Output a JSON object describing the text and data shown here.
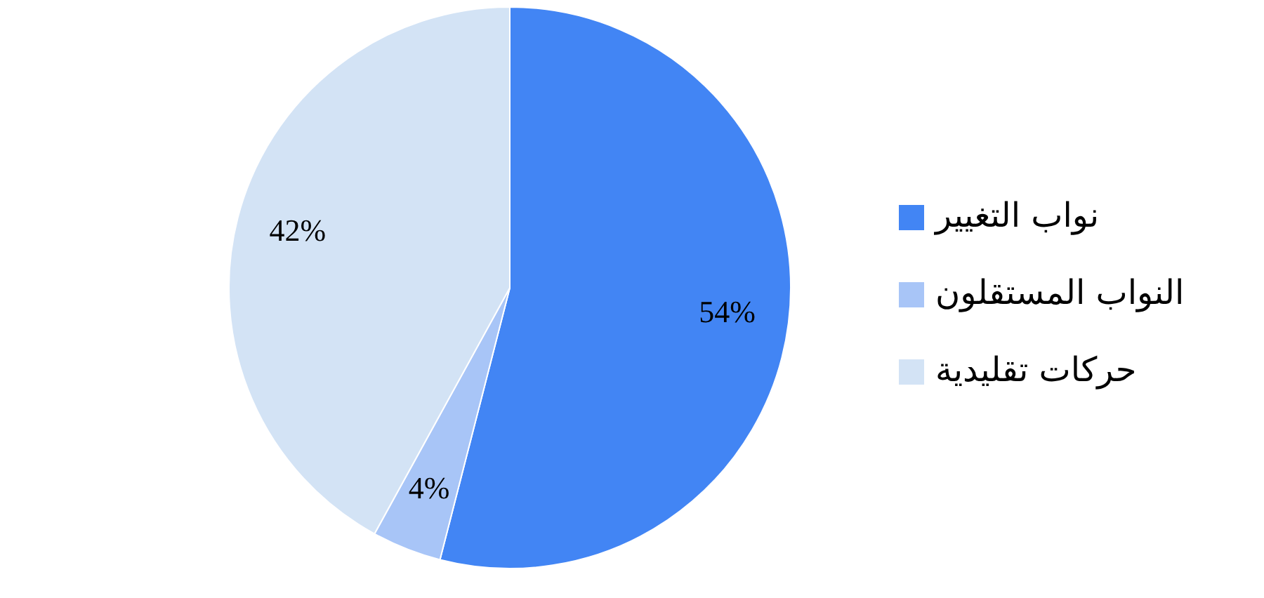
{
  "chart_data": {
    "type": "pie",
    "categories": [
      "نواب التغيير",
      "النواب المستقلون",
      "حركات تقليدية"
    ],
    "values": [
      54,
      4,
      42
    ],
    "value_labels": [
      "54%",
      "4%",
      "42%"
    ],
    "colors": [
      "#4285f4",
      "#a8c5f7",
      "#d3e3f5"
    ],
    "legend": "right"
  }
}
